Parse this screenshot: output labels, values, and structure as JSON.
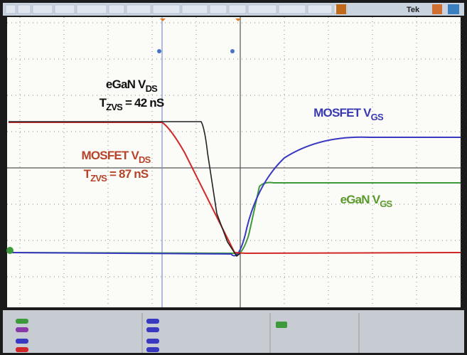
{
  "menu": {
    "brand": "Tek"
  },
  "annotations": [
    {
      "text": "eGaN V",
      "sub": "DS"
    },
    {
      "text": "T",
      "sub": "ZVS",
      "suffix": " = 42 nS"
    },
    {
      "text": "MOSFET V",
      "sub": "DS"
    },
    {
      "text": "T",
      "sub": "ZVS",
      "suffix": " = 87 nS"
    },
    {
      "text": "MOSFET V",
      "sub": "GS"
    },
    {
      "text": "eGaN V",
      "sub": "GS"
    }
  ]
}
